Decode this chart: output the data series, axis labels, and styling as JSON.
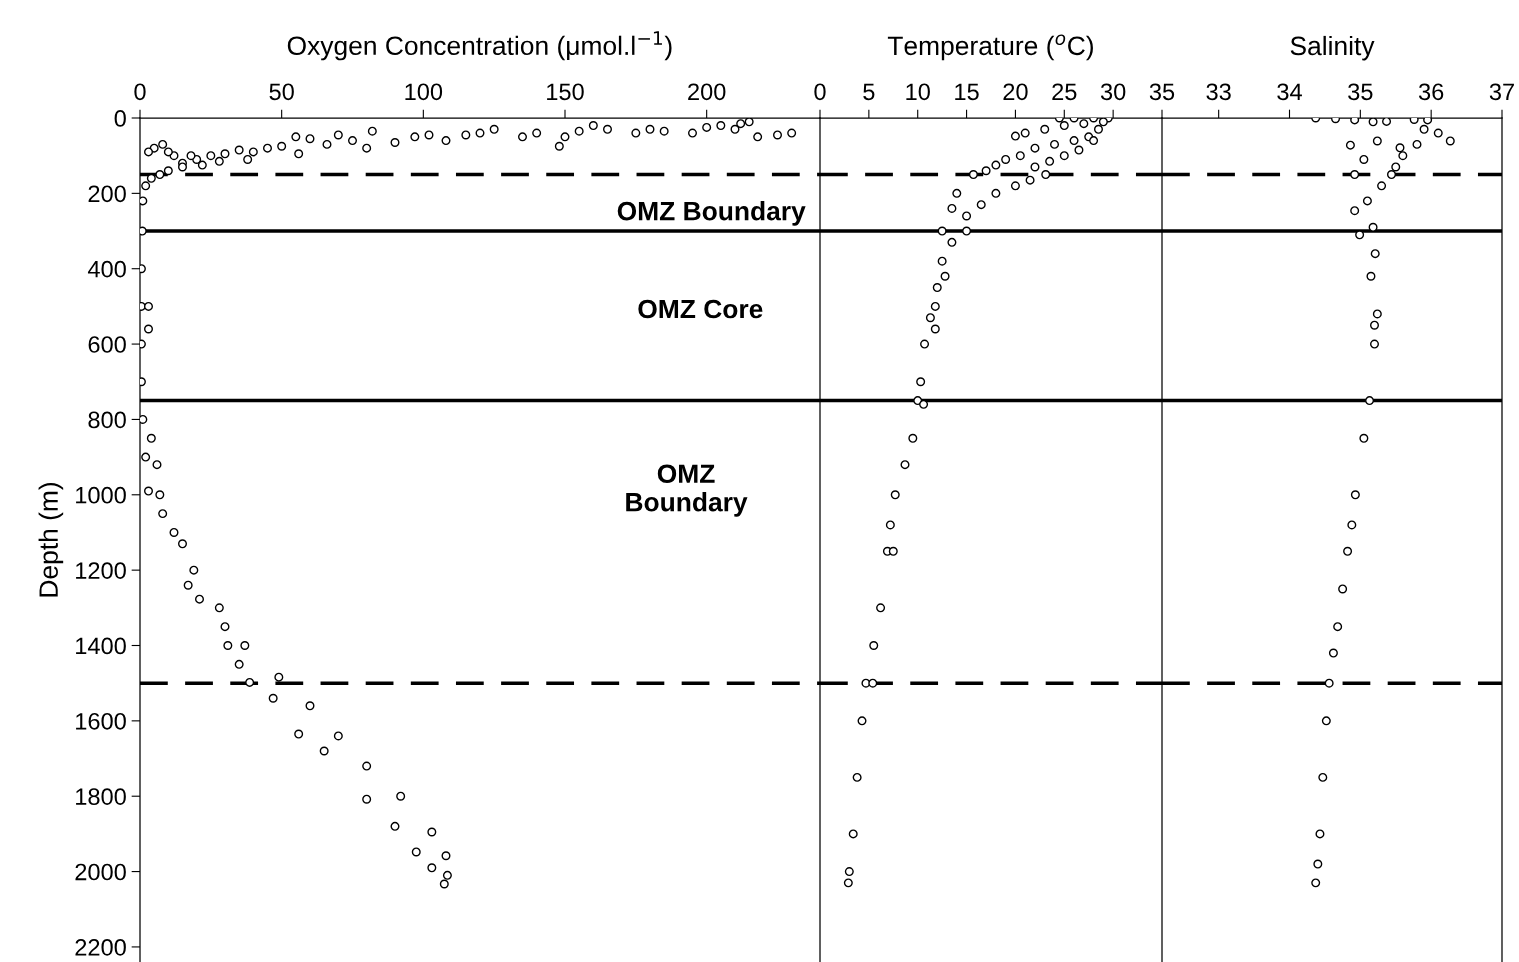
{
  "chart_data": [
    {
      "type": "scatter",
      "xlabel": "Oxygen Concentration (μmol.l$^{−1}$)",
      "ylabel": "Depth (m)",
      "xlim": [
        0,
        240
      ],
      "xticks": [
        0,
        50,
        100,
        150,
        200
      ],
      "ylim": [
        2240,
        0
      ],
      "yticks": [
        0,
        200,
        400,
        600,
        800,
        1000,
        1200,
        1400,
        1600,
        1800,
        2000,
        2200
      ],
      "marker": "circle",
      "grid": false,
      "series": [
        {
          "color": "#000000",
          "x": [
            215,
            212,
            205,
            210,
            200,
            195,
            185,
            180,
            175,
            165,
            160,
            155,
            150,
            148,
            140,
            135,
            125,
            120,
            115,
            108,
            102,
            97,
            90,
            82,
            80,
            75,
            70,
            66,
            60,
            55,
            50,
            45,
            40,
            35,
            30,
            25,
            20,
            15,
            12,
            10,
            8,
            5,
            3,
            225,
            230,
            218,
            56,
            38,
            28,
            22,
            18,
            15,
            10,
            7,
            4,
            2,
            1,
            0.8,
            0.5,
            0.5,
            3,
            0.5,
            3,
            0.5,
            1,
            4,
            6,
            2
          ],
          "values": [
            10,
            15,
            20,
            30,
            25,
            40,
            35,
            30,
            40,
            30,
            20,
            35,
            50,
            75,
            40,
            50,
            30,
            40,
            45,
            60,
            45,
            50,
            65,
            35,
            80,
            60,
            45,
            70,
            55,
            50,
            75,
            80,
            90,
            85,
            95,
            100,
            110,
            120,
            100,
            90,
            70,
            80,
            90,
            45,
            40,
            50,
            95,
            110,
            115,
            125,
            100,
            130,
            140,
            150,
            160,
            180,
            220,
            300,
            400,
            500,
            500,
            600,
            560,
            700,
            800,
            850,
            920,
            900
          ]
        },
        {
          "color": "#000000",
          "x": [
            3,
            8,
            15,
            17,
            28,
            31,
            35,
            38.7,
            47,
            56,
            65,
            80,
            90,
            97.5,
            103,
            107.4
          ],
          "values": [
            990,
            1050,
            1130,
            1240,
            1300,
            1400,
            1450,
            1498,
            1540,
            1635,
            1680,
            1808,
            1880,
            1948,
            1990,
            2033
          ]
        },
        {
          "color": "#000000",
          "x": [
            7,
            12,
            19,
            21,
            30,
            37,
            49,
            60,
            70,
            80,
            92,
            103,
            108,
            108.5
          ],
          "values": [
            1000,
            1100,
            1200,
            1277,
            1350,
            1400,
            1484,
            1560,
            1640,
            1720,
            1800,
            1895,
            1958,
            2010
          ]
        }
      ],
      "ref_lines": [
        {
          "axis": "y",
          "value": 150,
          "line_style": "dashed"
        },
        {
          "axis": "y",
          "value": 300,
          "line_style": "solid"
        },
        {
          "axis": "y",
          "value": 750,
          "line_style": "solid"
        },
        {
          "axis": "y",
          "value": 1500,
          "line_style": "dashed"
        }
      ],
      "annotations": [
        "OMZ Boundary",
        "OMZ Core",
        "OMZ\nBoundary"
      ]
    },
    {
      "type": "scatter",
      "xlabel": "Temperature ($^{o}$C)",
      "xlim": [
        0,
        35
      ],
      "xticks": [
        0,
        5,
        10,
        15,
        20,
        25,
        30,
        35
      ],
      "ylim": [
        2240,
        0
      ],
      "tick_labels": "x",
      "marker": "circle",
      "grid": false,
      "series": [
        {
          "color": "#000000",
          "x": [
            29.5,
            28,
            26,
            24.5,
            29,
            27,
            25,
            23,
            21,
            20,
            28.5,
            27.5,
            26,
            24,
            22,
            28,
            26.5,
            25,
            23.5,
            22,
            20.5,
            19,
            18,
            17,
            15.7,
            23.1,
            21.5,
            20,
            18,
            16.5,
            15,
            14,
            13.5,
            12.5,
            15,
            13.5,
            12.5,
            12,
            12.8,
            11.8,
            11.3,
            11.8,
            10.7,
            10.3,
            10,
            10.6,
            9.5,
            8.7,
            7.7,
            7.2,
            6.9,
            7.5,
            6.2,
            5.5,
            4.7,
            5.4,
            4.3,
            3.8,
            3.4,
            3,
            2.9
          ],
          "values": [
            0,
            0,
            0,
            0,
            10,
            15,
            20,
            30,
            40,
            48,
            30,
            50,
            60,
            70,
            80,
            60,
            85,
            100,
            115,
            130,
            100,
            110,
            125,
            140,
            150,
            150,
            165,
            180,
            200,
            230,
            260,
            200,
            240,
            300,
            300,
            330,
            380,
            450,
            420,
            500,
            530,
            560,
            600,
            700,
            750,
            760,
            850,
            920,
            1000,
            1080,
            1150,
            1150,
            1300,
            1400,
            1500,
            1500,
            1600,
            1750,
            1900,
            2000,
            2030
          ]
        }
      ],
      "ref_lines": [
        {
          "axis": "y",
          "value": 150,
          "line_style": "dashed"
        },
        {
          "axis": "y",
          "value": 300,
          "line_style": "solid"
        },
        {
          "axis": "y",
          "value": 750,
          "line_style": "solid"
        },
        {
          "axis": "y",
          "value": 1500,
          "line_style": "dashed"
        }
      ]
    },
    {
      "type": "scatter",
      "xlabel": "Salinity",
      "xlim": [
        32.2,
        37
      ],
      "xticks": [
        33,
        34,
        35,
        36,
        37
      ],
      "ylim": [
        2240,
        0
      ],
      "tick_labels": "x",
      "marker": "circle",
      "grid": false,
      "series": [
        {
          "color": "#000000",
          "x": [
            34.37,
            34.65,
            34.92,
            35.18,
            35.37,
            35.76,
            35.95,
            36.27,
            36.1,
            35.9,
            35.6,
            34.86,
            35.24,
            35.56,
            35.8,
            35.5,
            35.44,
            34.92,
            35.05,
            35.3,
            34.92,
            34.99,
            35.18,
            35.1,
            35.21,
            35.15,
            35.24,
            35.2,
            35.2,
            35.13,
            35.05,
            34.93,
            34.88,
            34.82,
            34.75,
            34.68,
            34.62,
            34.56,
            34.52,
            34.47,
            34.43,
            34.4,
            34.37
          ],
          "values": [
            0,
            2,
            5,
            10,
            9,
            4,
            5,
            61,
            40,
            30,
            100,
            72,
            61,
            79,
            70,
            130,
            150,
            150,
            110,
            180,
            246,
            310,
            290,
            220,
            360,
            420,
            520,
            600,
            550,
            750,
            850,
            1000,
            1080,
            1150,
            1250,
            1350,
            1420,
            1500,
            1600,
            1750,
            1900,
            1980,
            2030
          ]
        }
      ],
      "ref_lines": [
        {
          "axis": "y",
          "value": 150,
          "line_style": "dashed"
        },
        {
          "axis": "y",
          "value": 300,
          "line_style": "solid"
        },
        {
          "axis": "y",
          "value": 750,
          "line_style": "solid"
        },
        {
          "axis": "y",
          "value": 1500,
          "line_style": "dashed"
        }
      ]
    }
  ]
}
